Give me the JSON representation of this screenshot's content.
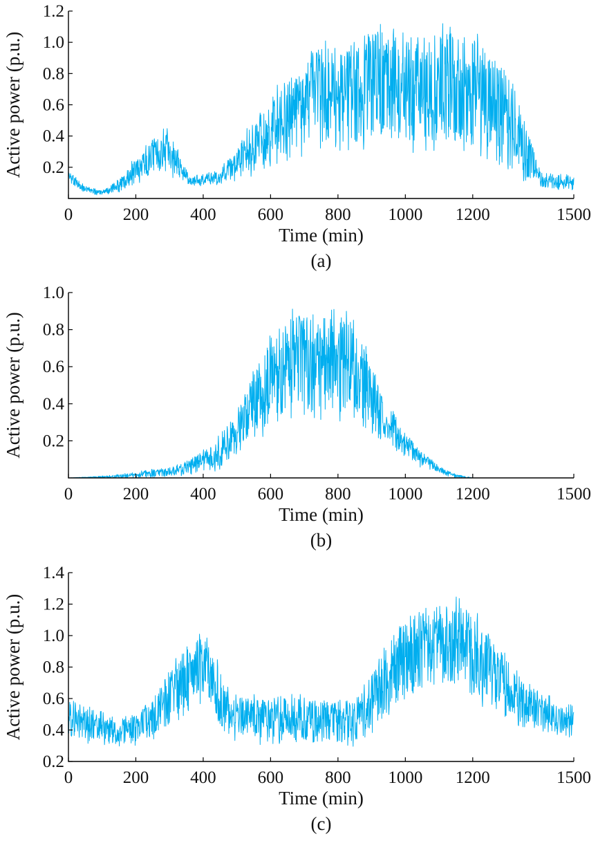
{
  "figure": {
    "line_color": "#00aeef"
  },
  "chart_data": [
    {
      "type": "line",
      "caption": "(a)",
      "xlabel": "Time (min)",
      "ylabel": "Active power (p.u.)",
      "xlim": [
        0,
        1500
      ],
      "ylim": [
        0.0,
        1.2
      ],
      "xticks": [
        0,
        200,
        400,
        600,
        800,
        1000,
        1200,
        1500
      ],
      "xtick_labels": [
        "0",
        "200",
        "400",
        "600",
        "800",
        "1000",
        "1200",
        "1500"
      ],
      "yticks": [
        0.2,
        0.4,
        0.6,
        0.8,
        1.0,
        1.2
      ],
      "ytick_labels": [
        "0.2",
        "0.4",
        "0.6",
        "0.8",
        "1.0",
        "1.2"
      ],
      "grid": false,
      "series": [
        {
          "color": "#00aeef",
          "envelope": {
            "x": [
              0,
              50,
              100,
              150,
              200,
              250,
              290,
              320,
              360,
              400,
              450,
              500,
              550,
              600,
              650,
              700,
              750,
              800,
              850,
              900,
              950,
              1000,
              1050,
              1100,
              1150,
              1200,
              1250,
              1300,
              1350,
              1400,
              1450,
              1500
            ],
            "low": [
              0.1,
              0.04,
              0.02,
              0.04,
              0.1,
              0.16,
              0.18,
              0.14,
              0.08,
              0.08,
              0.09,
              0.12,
              0.18,
              0.23,
              0.28,
              0.32,
              0.33,
              0.35,
              0.35,
              0.38,
              0.38,
              0.36,
              0.36,
              0.36,
              0.35,
              0.33,
              0.28,
              0.22,
              0.14,
              0.07,
              0.06,
              0.06
            ],
            "high": [
              0.18,
              0.08,
              0.05,
              0.12,
              0.26,
              0.38,
              0.44,
              0.32,
              0.14,
              0.16,
              0.18,
              0.32,
              0.5,
              0.63,
              0.78,
              0.88,
              0.96,
              0.98,
              1.02,
              1.06,
              1.1,
              1.08,
              1.02,
              1.05,
              1.07,
              1.04,
              0.92,
              0.8,
              0.52,
              0.18,
              0.16,
              0.14
            ]
          }
        }
      ]
    },
    {
      "type": "line",
      "caption": "(b)",
      "xlabel": "Time (min)",
      "ylabel": "Active power (p.u.)",
      "xlim": [
        0,
        1500
      ],
      "ylim": [
        0.0,
        1.0
      ],
      "xticks": [
        0,
        200,
        400,
        600,
        800,
        1000,
        1200,
        1500
      ],
      "xtick_labels": [
        "0",
        "200",
        "400",
        "600",
        "800",
        "1000",
        "1200",
        "1500"
      ],
      "yticks": [
        0.2,
        0.4,
        0.6,
        0.8,
        1.0
      ],
      "ytick_labels": [
        "0.2",
        "0.4",
        "0.6",
        "0.8",
        "1.0"
      ],
      "grid": false,
      "series": [
        {
          "color": "#00aeef",
          "envelope": {
            "x": [
              0,
              100,
              200,
              300,
              350,
              400,
              450,
              500,
              550,
              600,
              650,
              700,
              750,
              800,
              850,
              900,
              950,
              1000,
              1050,
              1100,
              1150,
              1200,
              1300,
              1400,
              1500
            ],
            "low": [
              0.0,
              0.0,
              0.0,
              0.01,
              0.02,
              0.03,
              0.06,
              0.12,
              0.2,
              0.28,
              0.34,
              0.36,
              0.36,
              0.35,
              0.3,
              0.24,
              0.18,
              0.11,
              0.06,
              0.02,
              0.0,
              0.0,
              0.0,
              0.0,
              0.0
            ],
            "high": [
              0.0,
              0.01,
              0.03,
              0.06,
              0.09,
              0.14,
              0.22,
              0.36,
              0.56,
              0.74,
              0.86,
              0.88,
              0.9,
              0.92,
              0.8,
              0.62,
              0.4,
              0.24,
              0.14,
              0.06,
              0.02,
              0.0,
              0.0,
              0.0,
              0.0
            ]
          }
        }
      ]
    },
    {
      "type": "line",
      "caption": "(c)",
      "xlabel": "Time (min)",
      "ylabel": "Active power (p.u.)",
      "xlim": [
        0,
        1500
      ],
      "ylim": [
        0.2,
        1.4
      ],
      "xticks": [
        0,
        200,
        400,
        600,
        800,
        1000,
        1200,
        1500
      ],
      "xtick_labels": [
        "0",
        "200",
        "400",
        "600",
        "800",
        "1000",
        "1200",
        "1500"
      ],
      "yticks": [
        0.2,
        0.4,
        0.6,
        0.8,
        1.0,
        1.2,
        1.4
      ],
      "ytick_labels": [
        "0.2",
        "0.4",
        "0.6",
        "0.8",
        "1.0",
        "1.2",
        "1.4"
      ],
      "grid": false,
      "series": [
        {
          "color": "#00aeef",
          "envelope": {
            "x": [
              0,
              50,
              100,
              150,
              200,
              250,
              300,
              350,
              400,
              430,
              470,
              500,
              600,
              700,
              800,
              850,
              900,
              950,
              1000,
              1050,
              1100,
              1150,
              1200,
              1250,
              1300,
              1350,
              1400,
              1450,
              1500
            ],
            "low": [
              0.36,
              0.33,
              0.31,
              0.31,
              0.32,
              0.36,
              0.44,
              0.54,
              0.58,
              0.48,
              0.38,
              0.34,
              0.33,
              0.33,
              0.32,
              0.32,
              0.4,
              0.52,
              0.62,
              0.66,
              0.68,
              0.68,
              0.64,
              0.56,
              0.48,
              0.42,
              0.38,
              0.36,
              0.36
            ],
            "high": [
              0.6,
              0.55,
              0.5,
              0.48,
              0.5,
              0.6,
              0.78,
              0.94,
              1.0,
              0.88,
              0.66,
              0.6,
              0.6,
              0.6,
              0.58,
              0.6,
              0.76,
              0.96,
              1.12,
              1.18,
              1.2,
              1.2,
              1.14,
              1.0,
              0.86,
              0.74,
              0.64,
              0.58,
              0.56
            ]
          }
        }
      ]
    }
  ]
}
